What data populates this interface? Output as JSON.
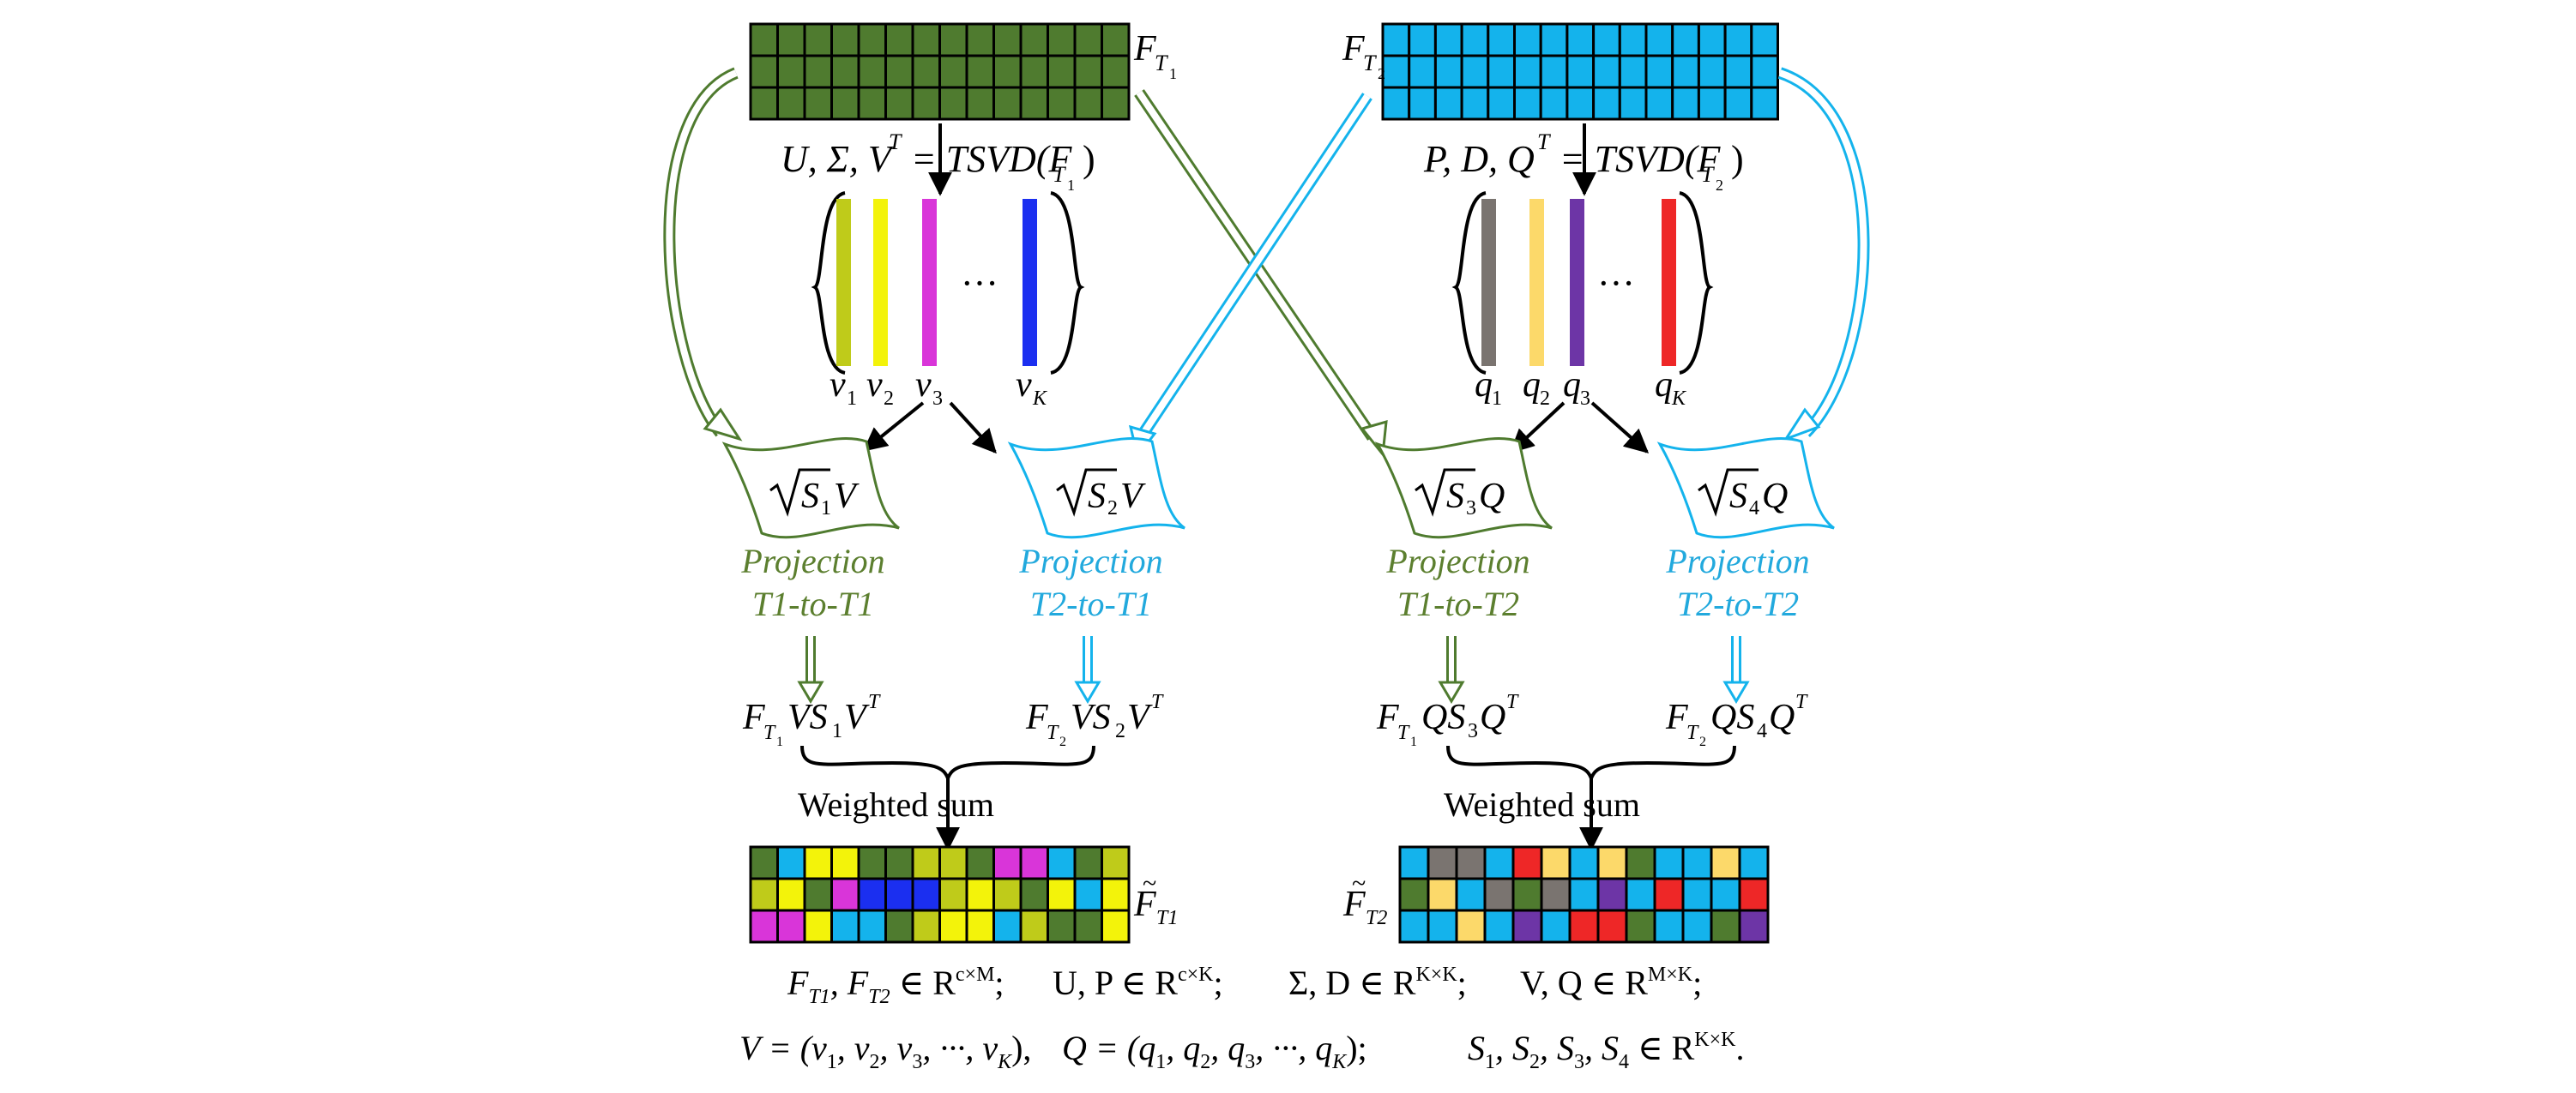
{
  "colors": {
    "green": "#4f7b2f",
    "cyan": "#14b3ec",
    "olive": "#bfcb1a",
    "yellow": "#f3f30a",
    "magenta": "#d935d9",
    "blue": "#1b2ff0",
    "gray": "#7a7470",
    "lightyellow": "#fcd96a",
    "purple": "#6d35a6",
    "red": "#ee2727",
    "green_text": "#5c7f2f",
    "cyan_text": "#22a9dd"
  },
  "left": {
    "F_label": "F",
    "F_sub": "T",
    "F_subsub": "1",
    "tsvd_lhs": "U, Σ, V",
    "tsvd_sup": "T",
    "tsvd_rhs": "= TSVD(F",
    "tsvd_close": ")",
    "vector_colors": [
      "#bfcb1a",
      "#f3f30a",
      "#d935d9",
      "#1b2ff0"
    ],
    "vector_names": [
      "v",
      "v",
      "v",
      "v"
    ],
    "vector_subs": [
      "1",
      "2",
      "3",
      "K"
    ],
    "ellipsis": "···",
    "proj1_formula": "V",
    "proj1_sub": "1",
    "proj2_formula": "V",
    "proj2_sub": "2",
    "proj1_line1": "Projection",
    "proj1_line2": "T1-to-T1",
    "proj2_line1": "Projection",
    "proj2_line2": "T2-to-T1",
    "res1": "VS",
    "res1_sub": "1",
    "res1_tail": "V",
    "res2": "VS",
    "res2_sub": "2",
    "res2_tail": "V",
    "weighted": "Weighted sum",
    "out_label": "F",
    "out_sub": "T1"
  },
  "right": {
    "F_label": "F",
    "F_sub": "T",
    "F_subsub": "2",
    "tsvd_lhs": "P, D, Q",
    "tsvd_sup": "T",
    "tsvd_rhs": "= TSVD(F",
    "tsvd_close": ")",
    "vector_colors": [
      "#7a7470",
      "#fcd96a",
      "#6d35a6",
      "#ee2727"
    ],
    "vector_names": [
      "q",
      "q",
      "q",
      "q"
    ],
    "vector_subs": [
      "1",
      "2",
      "3",
      "K"
    ],
    "ellipsis": "···",
    "proj1_formula": "Q",
    "proj1_sub": "3",
    "proj2_formula": "Q",
    "proj2_sub": "4",
    "proj1_line1": "Projection",
    "proj1_line2": "T1-to-T2",
    "proj2_line1": "Projection",
    "proj2_line2": "T2-to-T2",
    "res1": "QS",
    "res1_sub": "3",
    "res1_tail": "Q",
    "res2": "QS",
    "res2_sub": "4",
    "res2_tail": "Q",
    "weighted": "Weighted sum",
    "out_label": "F",
    "out_sub": "T2"
  },
  "out_grid_left": [
    [
      "green",
      "cyan",
      "yellow",
      "yellow",
      "green",
      "green",
      "olive",
      "olive",
      "green",
      "magenta",
      "magenta",
      "cyan",
      "green",
      "olive"
    ],
    [
      "olive",
      "yellow",
      "green",
      "magenta",
      "blue",
      "blue",
      "blue",
      "olive",
      "yellow",
      "olive",
      "green",
      "yellow",
      "cyan",
      "yellow"
    ],
    [
      "magenta",
      "magenta",
      "yellow",
      "cyan",
      "cyan",
      "green",
      "olive",
      "yellow",
      "yellow",
      "cyan",
      "olive",
      "green",
      "green",
      "yellow"
    ]
  ],
  "out_grid_right": [
    [
      "cyan",
      "gray",
      "gray",
      "cyan",
      "red",
      "lightyellow",
      "cyan",
      "lightyellow",
      "green",
      "cyan",
      "cyan",
      "lightyellow",
      "cyan"
    ],
    [
      "green",
      "lightyellow",
      "cyan",
      "gray",
      "green",
      "gray",
      "cyan",
      "purple",
      "cyan",
      "red",
      "cyan",
      "cyan",
      "red"
    ],
    [
      "cyan",
      "cyan",
      "lightyellow",
      "cyan",
      "purple",
      "cyan",
      "red",
      "red",
      "green",
      "cyan",
      "cyan",
      "green",
      "purple"
    ]
  ],
  "footer": {
    "line1": [
      "F_{T_1}, F_{T_2} ∈ R^{c×M};",
      "U, P ∈ R^{c×K};",
      "Σ, D ∈ R^{K×K};",
      "V, Q ∈ R^{M×K};"
    ],
    "line2": [
      "V = (v_1, v_2, v_3, ···, v_K),",
      "Q = (q_1, q_2, q_3, ···, q_K);",
      "S_1, S_2, S_3, S_4 ∈ R^{K×K}."
    ]
  }
}
